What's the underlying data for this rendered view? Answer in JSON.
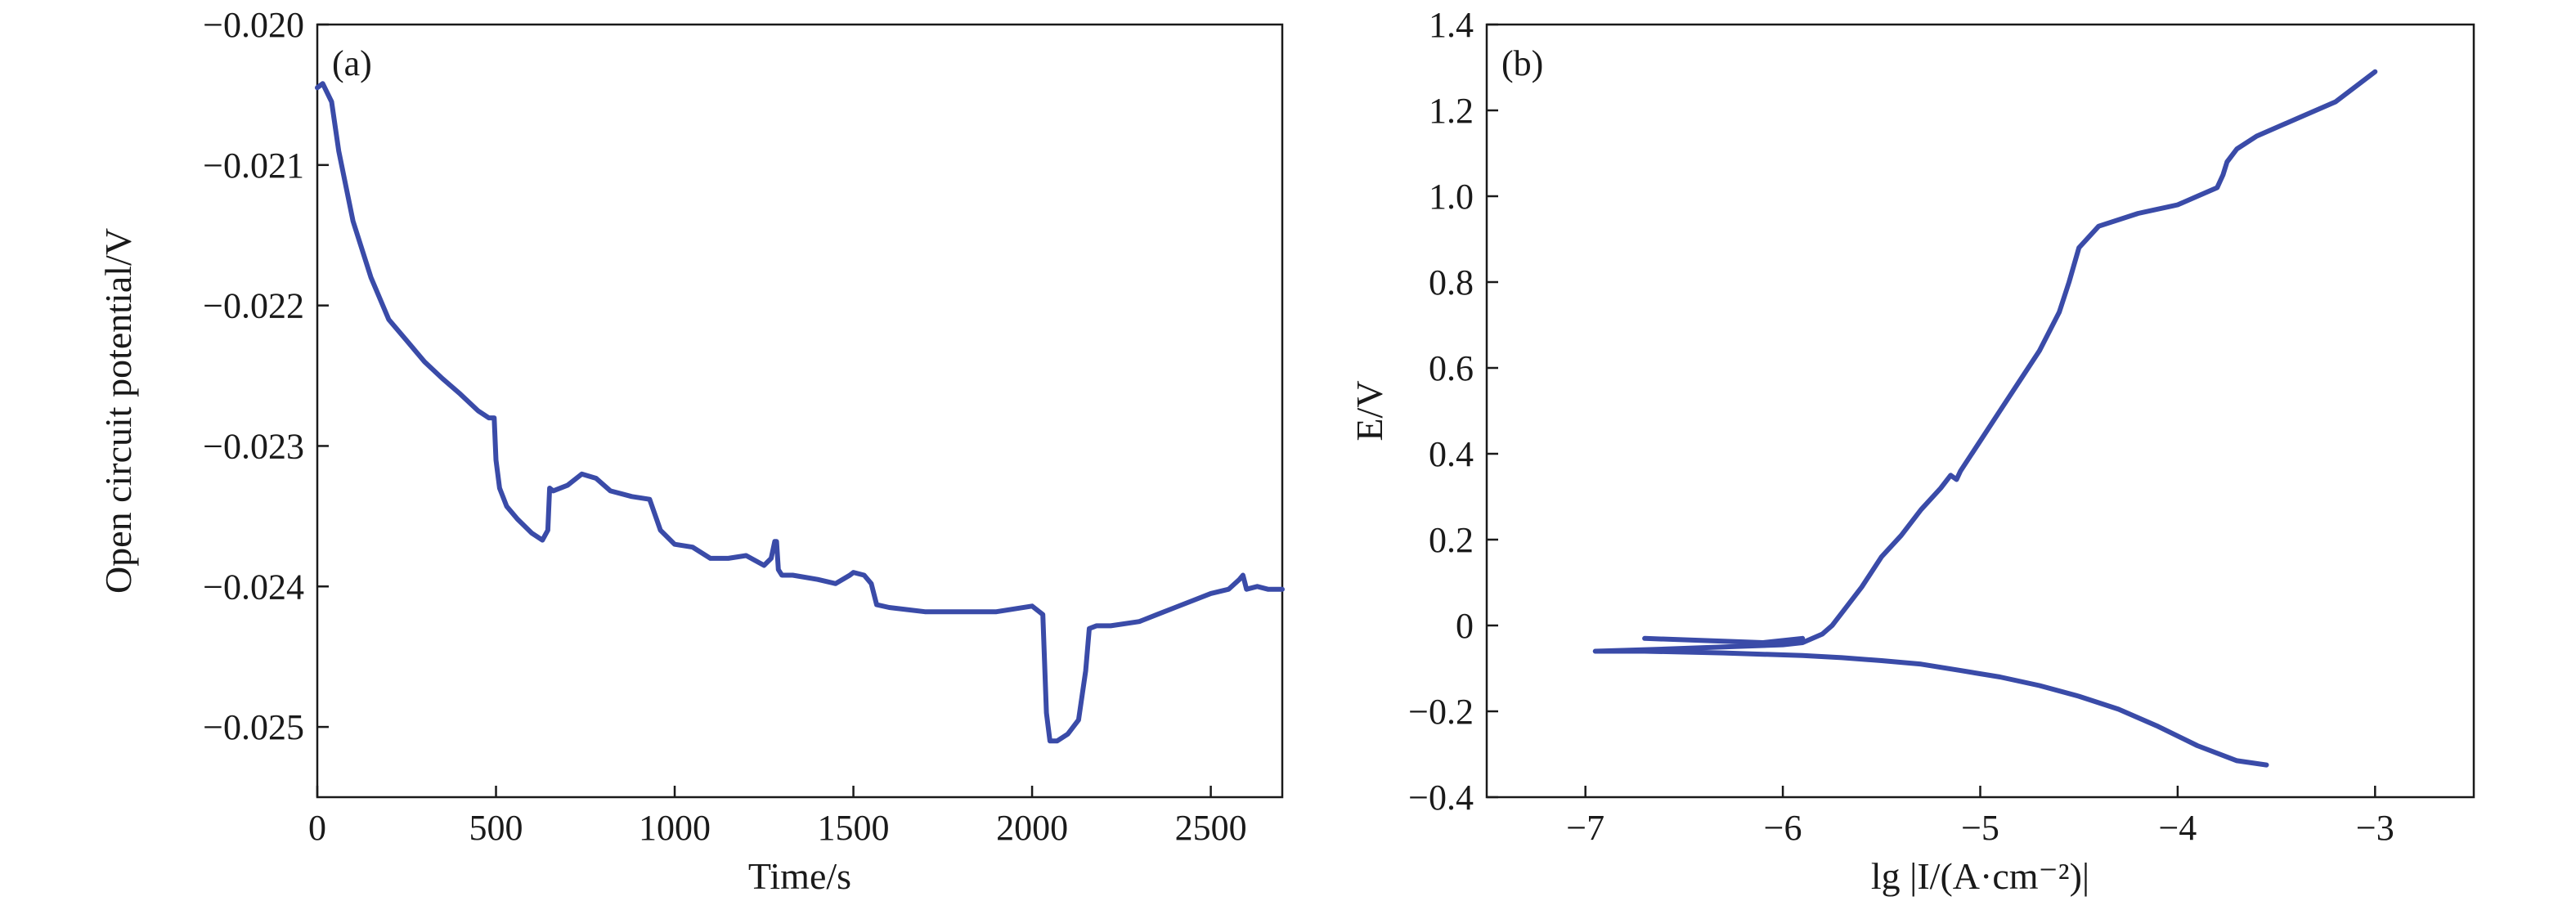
{
  "chart_data": [
    {
      "panel": "(a)",
      "type": "line",
      "xlabel": "Time/s",
      "ylabel": "Open circuit potential/V",
      "xlim": [
        0,
        2700
      ],
      "ylim": [
        -0.0255,
        -0.02
      ],
      "xticks": [
        0,
        500,
        1000,
        1500,
        2000,
        2500
      ],
      "xtick_labels": [
        "0",
        "500",
        "1000",
        "1500",
        "2000",
        "2500"
      ],
      "yticks": [
        -0.02,
        -0.021,
        -0.022,
        -0.023,
        -0.024,
        -0.025
      ],
      "ytick_labels": [
        "−0.020",
        "−0.021",
        "−0.022",
        "−0.023",
        "−0.024",
        "−0.025"
      ],
      "grid": false,
      "line_color": "#3a4ba8",
      "series": [
        {
          "x": [
            0,
            15,
            40,
            60,
            100,
            150,
            200,
            250,
            300,
            350,
            400,
            450,
            480,
            495,
            500,
            510,
            530,
            560,
            600,
            630,
            645,
            650,
            660,
            700,
            740,
            780,
            820,
            880,
            930,
            960,
            1000,
            1050,
            1100,
            1150,
            1200,
            1250,
            1270,
            1280,
            1285,
            1290,
            1300,
            1330,
            1400,
            1450,
            1490,
            1500,
            1530,
            1550,
            1565,
            1600,
            1700,
            1800,
            1900,
            2000,
            2030,
            2040,
            2050,
            2070,
            2100,
            2130,
            2150,
            2160,
            2180,
            2220,
            2300,
            2350,
            2400,
            2450,
            2500,
            2550,
            2580,
            2590,
            2600,
            2630,
            2660,
            2700
          ],
          "y": [
            -0.02045,
            -0.02042,
            -0.02055,
            -0.0209,
            -0.0214,
            -0.0218,
            -0.0221,
            -0.02225,
            -0.0224,
            -0.02252,
            -0.02263,
            -0.02275,
            -0.0228,
            -0.0228,
            -0.0231,
            -0.0233,
            -0.02343,
            -0.02352,
            -0.02362,
            -0.02367,
            -0.0236,
            -0.0233,
            -0.02332,
            -0.02328,
            -0.0232,
            -0.02323,
            -0.02332,
            -0.02336,
            -0.02338,
            -0.0236,
            -0.0237,
            -0.02372,
            -0.0238,
            -0.0238,
            -0.02378,
            -0.02385,
            -0.0238,
            -0.02368,
            -0.02368,
            -0.02388,
            -0.02392,
            -0.02392,
            -0.02395,
            -0.02398,
            -0.02392,
            -0.0239,
            -0.02392,
            -0.02398,
            -0.02413,
            -0.02415,
            -0.02418,
            -0.02418,
            -0.02418,
            -0.02414,
            -0.0242,
            -0.0249,
            -0.0251,
            -0.0251,
            -0.02505,
            -0.02495,
            -0.0246,
            -0.0243,
            -0.02428,
            -0.02428,
            -0.02425,
            -0.0242,
            -0.02415,
            -0.0241,
            -0.02405,
            -0.02402,
            -0.02395,
            -0.02392,
            -0.02402,
            -0.024,
            -0.02402,
            -0.02402
          ]
        }
      ]
    },
    {
      "panel": "(b)",
      "type": "line",
      "xlabel": "lg |I/(A·cm⁻²)|",
      "ylabel": "E/V",
      "xlim": [
        -7.5,
        -2.5
      ],
      "ylim": [
        -0.4,
        1.4
      ],
      "xticks": [
        -7,
        -6,
        -5,
        -4,
        -3
      ],
      "xtick_labels": [
        "−7",
        "−6",
        "−5",
        "−4",
        "−3"
      ],
      "yticks": [
        -0.4,
        -0.2,
        0,
        0.2,
        0.4,
        0.6,
        0.8,
        1.0,
        1.2,
        1.4
      ],
      "ytick_labels": [
        "−0.4",
        "−0.2",
        "0",
        "0.2",
        "0.4",
        "0.6",
        "0.8",
        "1.0",
        "1.2",
        "1.4"
      ],
      "grid": false,
      "line_color": "#3a4ba8",
      "series": [
        {
          "x": [
            -3.55,
            -3.7,
            -3.9,
            -4.1,
            -4.3,
            -4.5,
            -4.7,
            -4.9,
            -5.1,
            -5.3,
            -5.5,
            -5.7,
            -5.9,
            -6.1,
            -6.3,
            -6.5,
            -6.7,
            -6.95
          ],
          "y": [
            -0.325,
            -0.315,
            -0.28,
            -0.235,
            -0.195,
            -0.165,
            -0.14,
            -0.12,
            -0.105,
            -0.09,
            -0.082,
            -0.075,
            -0.07,
            -0.067,
            -0.064,
            -0.062,
            -0.06,
            -0.06
          ]
        },
        {
          "x": [
            -6.95,
            -6.6,
            -6.3,
            -6.0,
            -5.9,
            -5.8,
            -5.75,
            -5.7,
            -5.6,
            -5.5,
            -5.4,
            -5.3,
            -5.2,
            -5.15,
            -5.12,
            -5.1,
            -5.0,
            -4.9,
            -4.8,
            -4.7,
            -4.6,
            -4.55,
            -4.5,
            -4.4,
            -4.2,
            -4.0,
            -3.9,
            -3.8,
            -3.77,
            -3.75,
            -3.7,
            -3.6,
            -3.4,
            -3.2,
            -3.0
          ],
          "y": [
            -0.06,
            -0.055,
            -0.05,
            -0.045,
            -0.04,
            -0.02,
            0.0,
            0.03,
            0.09,
            0.16,
            0.21,
            0.27,
            0.32,
            0.35,
            0.34,
            0.36,
            0.43,
            0.5,
            0.57,
            0.64,
            0.73,
            0.8,
            0.88,
            0.93,
            0.96,
            0.98,
            1.0,
            1.02,
            1.05,
            1.08,
            1.11,
            1.14,
            1.18,
            1.22,
            1.29
          ]
        },
        {
          "x": [
            -6.7,
            -6.4,
            -6.1,
            -5.9
          ],
          "y": [
            -0.03,
            -0.035,
            -0.04,
            -0.03
          ]
        }
      ]
    }
  ]
}
